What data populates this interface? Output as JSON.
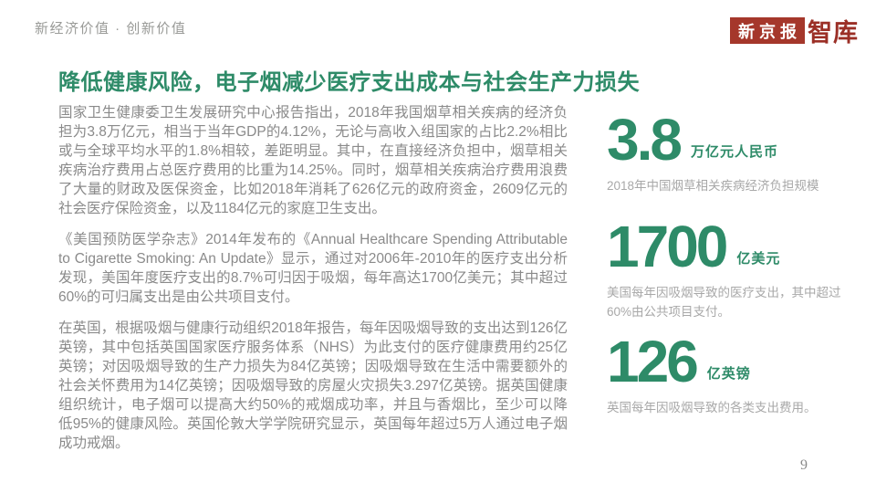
{
  "header": {
    "eyebrow": "新经济价值 · 创新价值",
    "logo": {
      "boxed_text": "新京报",
      "side_text": "智库"
    }
  },
  "title": "降低健康风险，电子烟减少医疗支出成本与社会生产力损失",
  "body": {
    "paragraphs": [
      "国家卫生健康委卫生发展研究中心报告指出，2018年我国烟草相关疾病的经济负担为3.8万亿元，相当于当年GDP的4.12%，无论与高收入组国家的占比2.2%相比或与全球平均水平的1.8%相较，差距明显。其中，在直接经济负担中，烟草相关疾病治疗费用占总医疗费用的比重为14.25%。同时，烟草相关疾病治疗费用浪费了大量的财政及医保资金，比如2018年消耗了626亿元的政府资金，2609亿元的社会医疗保险资金，以及1184亿元的家庭卫生支出。",
      "《美国预防医学杂志》2014年发布的《Annual Healthcare Spending Attributable to Cigarette Smoking: An Update》显示，通过对2006年-2010年的医疗支出分析发现，美国年度医疗支出的8.7%可归因于吸烟，每年高达1700亿美元；其中超过60%的可归属支出是由公共项目支付。",
      "在英国，根据吸烟与健康行动组织2018年报告，每年因吸烟导致的支出达到126亿英镑，其中包括英国国家医疗服务体系（NHS）为此支付的医疗健康费用约25亿英镑；对因吸烟导致的生产力损失为84亿英镑；因吸烟导致在生活中需要额外的社会关怀费用为14亿英镑；因吸烟导致的房屋火灾损失3.297亿英镑。据英国健康组织统计，电子烟可以提高大约50%的戒烟成功率，并且与香烟比，至少可以降低95%的健康风险。英国伦敦大学学院研究显示，英国每年超过5万人通过电子烟成功戒烟。"
    ]
  },
  "stats": [
    {
      "value": "3.8",
      "unit": "万亿元人民币",
      "caption": "2018年中国烟草相关疾病经济负担规模"
    },
    {
      "value": "1700",
      "unit": "亿美元",
      "caption": "美国每年因吸烟导致的医疗支出，其中超过60%由公共项目支付。"
    },
    {
      "value": "126",
      "unit": "亿英镑",
      "caption": "英国每年因吸烟导致的各类支出费用。"
    }
  ],
  "footer": {
    "page_number": "9"
  },
  "colors": {
    "accent_green": "#2E8B68",
    "brand_red": "#A5372B",
    "brand_red_dark": "#9B2F26",
    "body_gray": "#8a8a8a",
    "caption_gray": "#a8a8a8"
  }
}
